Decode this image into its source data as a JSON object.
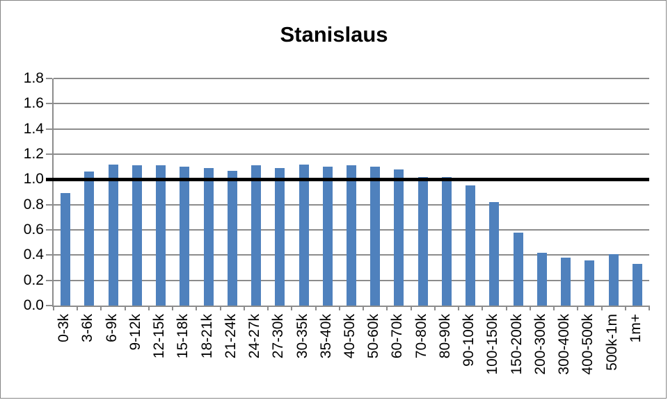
{
  "chart_data": {
    "type": "bar",
    "title": "Stanislaus",
    "categories": [
      "0-3k",
      "3-6k",
      "6-9k",
      "9-12k",
      "12-15k",
      "15-18k",
      "18-21k",
      "21-24k",
      "24-27k",
      "27-30k",
      "30-35k",
      "35-40k",
      "40-50k",
      "50-60k",
      "60-70k",
      "70-80k",
      "80-90k",
      "90-100k",
      "100-150k",
      "150-200k",
      "200-300k",
      "300-400k",
      "400-500k",
      "500k-1m",
      "1m+"
    ],
    "values": [
      0.89,
      1.06,
      1.12,
      1.11,
      1.11,
      1.1,
      1.09,
      1.07,
      1.11,
      1.09,
      1.12,
      1.1,
      1.11,
      1.1,
      1.08,
      1.02,
      1.02,
      0.95,
      0.82,
      0.58,
      0.42,
      0.38,
      0.36,
      0.41,
      0.33
    ],
    "xlabel": "",
    "ylabel": "",
    "ylim": [
      0,
      1.8
    ],
    "ytick_step": 0.2,
    "ytick_labels": [
      "0.0",
      "0.2",
      "0.4",
      "0.6",
      "0.8",
      "1.0",
      "1.2",
      "1.4",
      "1.6",
      "1.8"
    ],
    "reference_line": {
      "value": 1.0,
      "color": "#000000"
    },
    "legend": "none",
    "grid": "horizontal",
    "bar_color": "#4f81bd",
    "gridline_color": "#8c8c8c",
    "axis_color": "#8c8c8c",
    "border_color": "#858585"
  }
}
